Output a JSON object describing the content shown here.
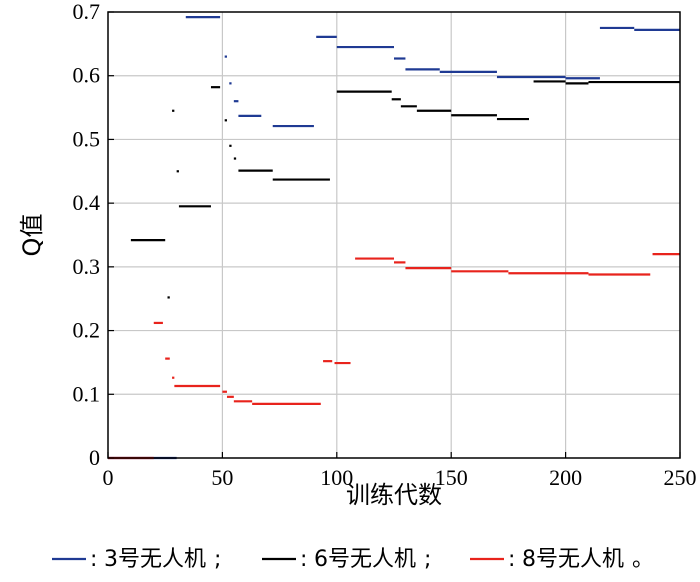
{
  "chart_data": {
    "type": "line",
    "xlabel": "训练代数",
    "ylabel": "Q值",
    "xlim": [
      0,
      250
    ],
    "ylim": [
      0,
      0.7
    ],
    "xticks": [
      "0",
      "50",
      "100",
      "150",
      "200",
      "250"
    ],
    "yticks": [
      "0",
      "0.1",
      "0.2",
      "0.3",
      "0.4",
      "0.5",
      "0.6",
      "0.7"
    ],
    "grid": true,
    "legend_position": "bottom",
    "series": [
      {
        "name": "3号无人机",
        "color": "#1f3a93",
        "segments": [
          [
            0,
            30,
            0.0
          ],
          [
            34,
            49,
            0.692
          ],
          [
            51,
            52,
            0.63
          ],
          [
            53,
            54,
            0.588
          ],
          [
            55,
            57,
            0.56
          ],
          [
            57,
            67,
            0.537
          ],
          [
            72,
            90,
            0.521
          ],
          [
            91,
            100,
            0.661
          ],
          [
            100,
            125,
            0.645
          ],
          [
            125,
            130,
            0.627
          ],
          [
            130,
            145,
            0.61
          ],
          [
            145,
            170,
            0.606
          ],
          [
            170,
            200,
            0.598
          ],
          [
            200,
            215,
            0.596
          ],
          [
            215,
            230,
            0.675
          ],
          [
            230,
            250,
            0.672
          ]
        ]
      },
      {
        "name": "6号无人机",
        "color": "#000000",
        "segments": [
          [
            10,
            25,
            0.342
          ],
          [
            26,
            27,
            0.252
          ],
          [
            28,
            29,
            0.545
          ],
          [
            30,
            31,
            0.45
          ],
          [
            31,
            45,
            0.395
          ],
          [
            45,
            49,
            0.582
          ],
          [
            51,
            52,
            0.53
          ],
          [
            53,
            54,
            0.49
          ],
          [
            55,
            56,
            0.47
          ],
          [
            57,
            72,
            0.451
          ],
          [
            72,
            97,
            0.437
          ],
          [
            100,
            124,
            0.575
          ],
          [
            124,
            128,
            0.563
          ],
          [
            128,
            135,
            0.552
          ],
          [
            135,
            150,
            0.545
          ],
          [
            150,
            170,
            0.538
          ],
          [
            170,
            184,
            0.532
          ],
          [
            186,
            200,
            0.591
          ],
          [
            200,
            210,
            0.588
          ],
          [
            210,
            250,
            0.59
          ]
        ]
      },
      {
        "name": "8号无人机",
        "color": "#e8231c",
        "segments": [
          [
            0,
            20,
            0.0
          ],
          [
            20,
            24,
            0.212
          ],
          [
            25,
            27,
            0.156
          ],
          [
            28,
            29,
            0.126
          ],
          [
            29,
            49,
            0.113
          ],
          [
            50,
            52,
            0.104
          ],
          [
            52,
            55,
            0.096
          ],
          [
            55,
            63,
            0.089
          ],
          [
            63,
            93,
            0.085
          ],
          [
            94,
            98,
            0.152
          ],
          [
            99,
            106,
            0.149
          ],
          [
            108,
            125,
            0.313
          ],
          [
            125,
            130,
            0.307
          ],
          [
            130,
            150,
            0.298
          ],
          [
            150,
            175,
            0.293
          ],
          [
            175,
            210,
            0.29
          ],
          [
            210,
            237,
            0.288
          ],
          [
            238,
            250,
            0.32
          ]
        ]
      }
    ],
    "legend": [
      {
        "marker": "—",
        "sep": ":",
        "label": "3号无人机",
        "punct": ";"
      },
      {
        "marker": "—",
        "sep": ":",
        "label": "6号无人机",
        "punct": ";"
      },
      {
        "marker": "—",
        "sep": ":",
        "label": "8号无人机",
        "punct": "。"
      }
    ]
  }
}
